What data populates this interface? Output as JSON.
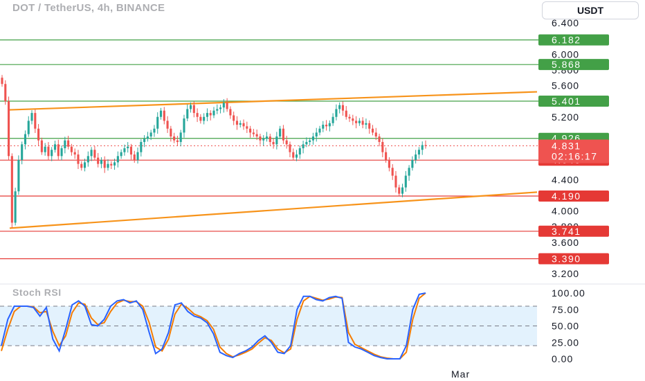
{
  "header": {
    "title": "DOT / TetherUS, 4h, BINANCE",
    "currency_button": "USDT"
  },
  "colors": {
    "bull": "#26a69a",
    "bear": "#ef5350",
    "support_line": "#e53935",
    "resistance_line": "#43a047",
    "trendline": "#f7931a",
    "stoch_k": "#2962ff",
    "stoch_d": "#f57c00",
    "stoch_band": "#e3f2fd"
  },
  "chart_data": [
    {
      "type": "candlestick",
      "title": "DOT / TetherUS, 4h, BINANCE",
      "ylim": [
        3.1,
        6.5
      ],
      "y_ticks": [
        "3.200",
        "3.600",
        "3.800",
        "4.000",
        "4.400",
        "5.200",
        "5.600",
        "5.800",
        "6.000",
        "6.400"
      ],
      "x_ticks": [
        "Mar"
      ],
      "horizontal_levels": [
        {
          "label": "6.182",
          "value": 6.182,
          "kind": "resistance"
        },
        {
          "label": "5.868",
          "value": 5.868,
          "kind": "resistance"
        },
        {
          "label": "5.401",
          "value": 5.401,
          "kind": "resistance"
        },
        {
          "label": "4.926",
          "value": 4.926,
          "kind": "resistance"
        },
        {
          "label": "4.648",
          "value": 4.648,
          "kind": "support"
        },
        {
          "label": "4.190",
          "value": 4.19,
          "kind": "support"
        },
        {
          "label": "3.741",
          "value": 3.741,
          "kind": "support"
        },
        {
          "label": "3.390",
          "value": 3.39,
          "kind": "support"
        }
      ],
      "current_price": {
        "label": "4.831",
        "value": 4.831,
        "countdown": "02:16:17"
      },
      "trendlines": [
        {
          "from": {
            "bar": 3,
            "value": 5.29
          },
          "to": {
            "bar": 182,
            "value": 5.52
          }
        },
        {
          "from": {
            "bar": 3,
            "value": 3.78
          },
          "to": {
            "bar": 182,
            "value": 4.24
          }
        }
      ],
      "candles_close": [
        5.62,
        5.4,
        4.7,
        3.85,
        4.25,
        4.65,
        4.85,
        4.98,
        5.15,
        5.25,
        5.05,
        4.9,
        4.75,
        4.82,
        4.7,
        4.78,
        4.85,
        4.7,
        4.8,
        4.9,
        4.82,
        4.75,
        4.72,
        4.6,
        4.55,
        4.62,
        4.7,
        4.78,
        4.68,
        4.6,
        4.65,
        4.55,
        4.6,
        4.58,
        4.62,
        4.7,
        4.75,
        4.8,
        4.82,
        4.72,
        4.65,
        4.75,
        4.88,
        4.92,
        4.95,
        5.0,
        5.05,
        5.2,
        5.28,
        5.15,
        5.05,
        4.95,
        4.9,
        4.88,
        5.0,
        5.18,
        5.3,
        5.35,
        5.25,
        5.2,
        5.15,
        5.2,
        5.25,
        5.22,
        5.28,
        5.3,
        5.32,
        5.38,
        5.3,
        5.22,
        5.15,
        5.1,
        5.12,
        5.08,
        5.05,
        5.0,
        4.98,
        4.95,
        4.9,
        4.92,
        4.95,
        4.88,
        4.85,
        4.95,
        5.05,
        4.9,
        4.85,
        4.75,
        4.68,
        4.72,
        4.8,
        4.85,
        4.88,
        4.9,
        4.95,
        5.0,
        5.05,
        5.1,
        5.08,
        5.12,
        5.2,
        5.3,
        5.35,
        5.28,
        5.2,
        5.18,
        5.15,
        5.12,
        5.15,
        5.1,
        5.12,
        5.05,
        5.0,
        4.95,
        4.88,
        4.75,
        4.65,
        4.55,
        4.45,
        4.3,
        4.22,
        4.3,
        4.45,
        4.55,
        4.65,
        4.72,
        4.78,
        4.84,
        4.83
      ],
      "series": [
        {
          "name": "Stoch RSI",
          "values_k": [
            20,
            60,
            80,
            80,
            80,
            78,
            65,
            78,
            30,
            12,
            45,
            82,
            88,
            80,
            52,
            50,
            60,
            80,
            88,
            90,
            85,
            88,
            75,
            40,
            8,
            15,
            40,
            82,
            85,
            72,
            65,
            62,
            55,
            38,
            10,
            5,
            2,
            8,
            12,
            18,
            28,
            35,
            25,
            10,
            8,
            20,
            75,
            95,
            95,
            90,
            88,
            93,
            95,
            92,
            25,
            18,
            15,
            10,
            5,
            2,
            0,
            0,
            0,
            20,
            75,
            98,
            100
          ],
          "values_d": [
            12,
            45,
            72,
            80,
            80,
            79,
            70,
            72,
            42,
            20,
            35,
            70,
            85,
            83,
            62,
            52,
            55,
            72,
            85,
            89,
            87,
            87,
            80,
            55,
            18,
            12,
            30,
            68,
            83,
            77,
            68,
            64,
            58,
            45,
            18,
            8,
            3,
            6,
            10,
            15,
            24,
            32,
            28,
            15,
            9,
            15,
            60,
            88,
            95,
            92,
            89,
            91,
            94,
            93,
            40,
            22,
            17,
            12,
            7,
            3,
            1,
            0,
            0,
            10,
            60,
            92,
            100
          ]
        }
      ],
      "oscillator": {
        "name": "Stoch RSI",
        "ylim": [
          0,
          100
        ],
        "y_ticks": [
          "0.00",
          "25.00",
          "50.00",
          "75.00",
          "100.00"
        ],
        "band": [
          20,
          80
        ]
      }
    }
  ]
}
